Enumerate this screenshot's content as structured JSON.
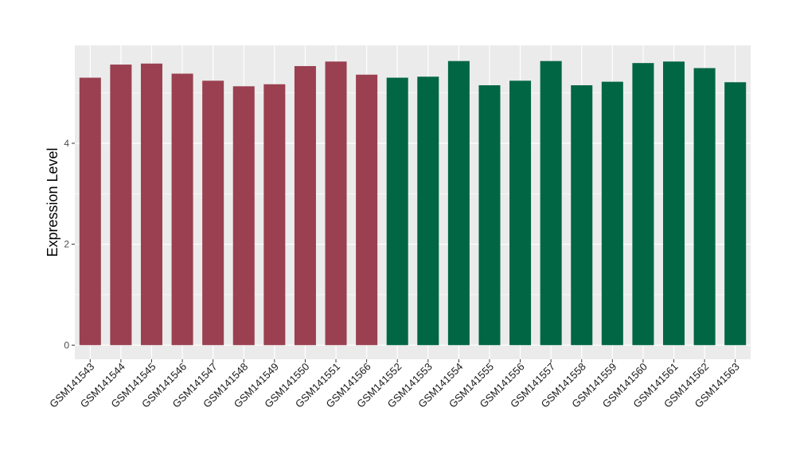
{
  "chart_data": {
    "type": "bar",
    "title": "",
    "xlabel": "",
    "ylabel": "Expression Level",
    "ylim": [
      -0.28,
      5.94
    ],
    "yticks": [
      0,
      2,
      4
    ],
    "grid": true,
    "legend": "none",
    "categories": [
      "GSM141543",
      "GSM141544",
      "GSM141545",
      "GSM141546",
      "GSM141547",
      "GSM141548",
      "GSM141549",
      "GSM141550",
      "GSM141551",
      "GSM141566",
      "GSM141552",
      "GSM141553",
      "GSM141554",
      "GSM141555",
      "GSM141556",
      "GSM141557",
      "GSM141558",
      "GSM141559",
      "GSM141560",
      "GSM141561",
      "GSM141562",
      "GSM141563"
    ],
    "values": [
      5.3,
      5.56,
      5.58,
      5.38,
      5.24,
      5.13,
      5.17,
      5.53,
      5.62,
      5.36,
      5.3,
      5.32,
      5.63,
      5.15,
      5.24,
      5.63,
      5.15,
      5.22,
      5.59,
      5.62,
      5.49,
      5.21
    ],
    "bar_colors": [
      "#9A4050",
      "#9A4050",
      "#9A4050",
      "#9A4050",
      "#9A4050",
      "#9A4050",
      "#9A4050",
      "#9A4050",
      "#9A4050",
      "#9A4050",
      "#006644",
      "#006644",
      "#006644",
      "#006644",
      "#006644",
      "#006644",
      "#006644",
      "#006644",
      "#006644",
      "#006644",
      "#006644",
      "#006644"
    ],
    "panel_color": "#EBEBEB",
    "grid_color": "#FFFFFF"
  }
}
